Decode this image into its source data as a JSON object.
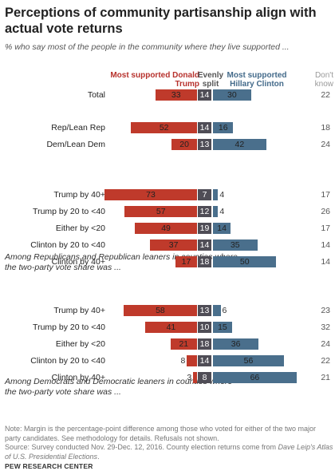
{
  "title": "Perceptions of community partisanship align with actual vote returns",
  "subtitle": "% who say most of the people in the community where they live supported ...",
  "headers": {
    "trump": "Most supported Donald Trump",
    "split": "Evenly split",
    "clinton": "Most supported Hillary Clinton",
    "dk": "Don't know"
  },
  "colors": {
    "trump": "#bf3a2b",
    "split": "#4f4d56",
    "clinton": "#4a6f8c"
  },
  "sections": {
    "rep": "Among Republicans and Republican leaners in counties where the two-party vote share was ...",
    "dem": "Among Democrats and Democratic leaners in counties where the two-party vote share was ..."
  },
  "chart_data": {
    "type": "bar",
    "stacked": "diverging",
    "series": [
      {
        "name": "Most supported Donald Trump",
        "values": [
          33,
          52,
          20,
          73,
          57,
          49,
          37,
          17,
          58,
          41,
          21,
          8,
          3
        ]
      },
      {
        "name": "Evenly split",
        "values": [
          14,
          14,
          13,
          7,
          12,
          19,
          14,
          18,
          13,
          10,
          18,
          14,
          8
        ]
      },
      {
        "name": "Most supported Hillary Clinton",
        "values": [
          30,
          16,
          42,
          4,
          4,
          14,
          35,
          50,
          6,
          15,
          36,
          56,
          66
        ]
      },
      {
        "name": "Don't know",
        "values": [
          22,
          18,
          24,
          17,
          26,
          17,
          14,
          14,
          23,
          32,
          24,
          22,
          21
        ]
      }
    ],
    "groups": [
      {
        "categories": [
          "Total"
        ]
      },
      {
        "categories": [
          "Rep/Lean Rep",
          "Dem/Lean Dem"
        ]
      },
      {
        "categories": [
          "Trump by 40+",
          "Trump by 20 to <40",
          "Either by <20",
          "Clinton by 20 to <40",
          "Clinton by 40+"
        ]
      },
      {
        "categories": [
          "Trump by 40+",
          "Trump by 20 to <40",
          "Either by <20",
          "Clinton by 20 to <40",
          "Clinton by 40+"
        ]
      }
    ]
  },
  "note": "Note: Margin is the percentage-point difference among those who voted for either of the two major party candidates. See methodology for details. Refusals not shown.",
  "source_prefix": "Source: Survey conducted Nov. 29-Dec. 12, 2016. County election returns come from ",
  "source_italic": "Dave Leip's Atlas of U.S. Presidential Elections",
  "source_suffix": ".",
  "brand": "PEW RESEARCH CENTER"
}
